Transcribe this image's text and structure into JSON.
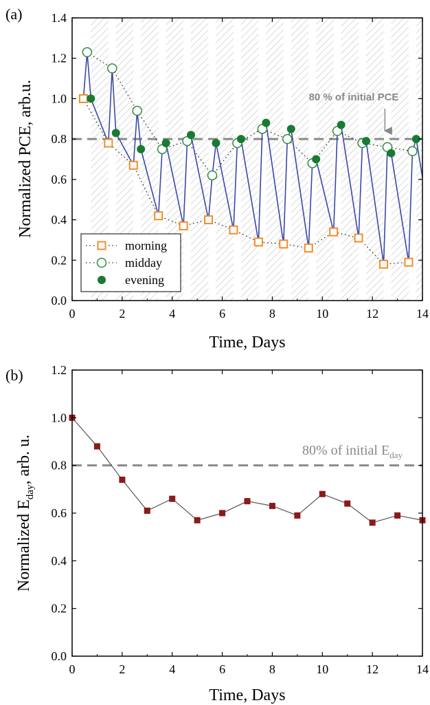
{
  "panel_labels": [
    "(a)",
    "(b)"
  ],
  "chart_data": [
    {
      "type": "line",
      "panel": "(a)",
      "xlabel": "Time, Days",
      "ylabel": "Normalized PCE, arb.u.",
      "xlim": [
        0,
        14
      ],
      "ylim": [
        0,
        1.4
      ],
      "xticks": [
        0,
        2,
        4,
        6,
        8,
        10,
        12,
        14
      ],
      "yticks": [
        0.0,
        0.2,
        0.4,
        0.6,
        0.8,
        1.0,
        1.2,
        1.4
      ],
      "ytick_labels": [
        "0.0",
        "0.2",
        "0.4",
        "0.6",
        "0.8",
        "1.0",
        "1.2",
        "1.4"
      ],
      "background": "alternating hatched night bands",
      "reference_line": {
        "y": 0.8,
        "style": "dashed",
        "color": "#8a8a8a"
      },
      "annotation": {
        "text": "80 % of initial PCE",
        "arrow_to": [
          12.5,
          0.8
        ]
      },
      "legend": {
        "position": "bottom-left",
        "entries": [
          "morning",
          "midday",
          "evening"
        ]
      },
      "series": [
        {
          "name": "morning",
          "marker": "open-square",
          "color": "#f28c28",
          "x": [
            0.45,
            1.45,
            2.45,
            3.45,
            4.45,
            5.45,
            6.45,
            7.45,
            8.45,
            9.45,
            10.45,
            11.45,
            12.45,
            13.45
          ],
          "y": [
            1.0,
            0.78,
            0.67,
            0.42,
            0.37,
            0.4,
            0.35,
            0.29,
            0.28,
            0.26,
            0.34,
            0.31,
            0.18,
            0.19
          ]
        },
        {
          "name": "midday",
          "marker": "open-circle",
          "color": "#2e8b3e",
          "x": [
            0.6,
            1.6,
            2.6,
            3.6,
            4.6,
            5.6,
            6.6,
            7.6,
            8.6,
            9.6,
            10.6,
            11.6,
            12.6,
            13.6
          ],
          "y": [
            1.23,
            1.15,
            0.94,
            0.75,
            0.79,
            0.62,
            0.78,
            0.85,
            0.8,
            0.68,
            0.84,
            0.78,
            0.76,
            0.74
          ]
        },
        {
          "name": "evening",
          "marker": "filled-circle",
          "color": "#1a7a33",
          "x": [
            0.75,
            1.75,
            2.75,
            3.75,
            4.75,
            5.75,
            6.75,
            7.75,
            8.75,
            9.75,
            10.75,
            11.75,
            12.75,
            13.75
          ],
          "y": [
            1.0,
            0.83,
            0.75,
            0.78,
            0.82,
            0.78,
            0.8,
            0.88,
            0.85,
            0.7,
            0.87,
            0.79,
            0.73,
            0.8
          ]
        }
      ],
      "connector": {
        "color": "#3b46a8",
        "x_end": 14,
        "y_end": 0.61
      }
    },
    {
      "type": "line",
      "panel": "(b)",
      "xlabel": "Time, Days",
      "ylabel": "Normalized E",
      "ylabel_subscript": "day",
      "ylabel_suffix": ", arb. u.",
      "xlim": [
        0,
        14
      ],
      "ylim": [
        0,
        1.2
      ],
      "xticks": [
        0,
        2,
        4,
        6,
        8,
        10,
        12,
        14
      ],
      "yticks": [
        0.0,
        0.2,
        0.4,
        0.6,
        0.8,
        1.0,
        1.2
      ],
      "ytick_labels": [
        "0.0",
        "0.2",
        "0.4",
        "0.6",
        "0.8",
        "1.0",
        "1.2"
      ],
      "reference_line": {
        "y": 0.8,
        "style": "dashed",
        "color": "#8a8a8a"
      },
      "annotation": {
        "text": "80% of initial E",
        "subscript": "day"
      },
      "series": [
        {
          "name": "",
          "marker": "filled-square",
          "color": "#8b1a1a",
          "x": [
            0,
            1,
            2,
            3,
            4,
            5,
            6,
            7,
            8,
            9,
            10,
            11,
            12,
            13,
            14
          ],
          "y": [
            1.0,
            0.88,
            0.74,
            0.61,
            0.66,
            0.57,
            0.6,
            0.65,
            0.63,
            0.59,
            0.68,
            0.64,
            0.56,
            0.59,
            0.57
          ]
        }
      ]
    }
  ]
}
